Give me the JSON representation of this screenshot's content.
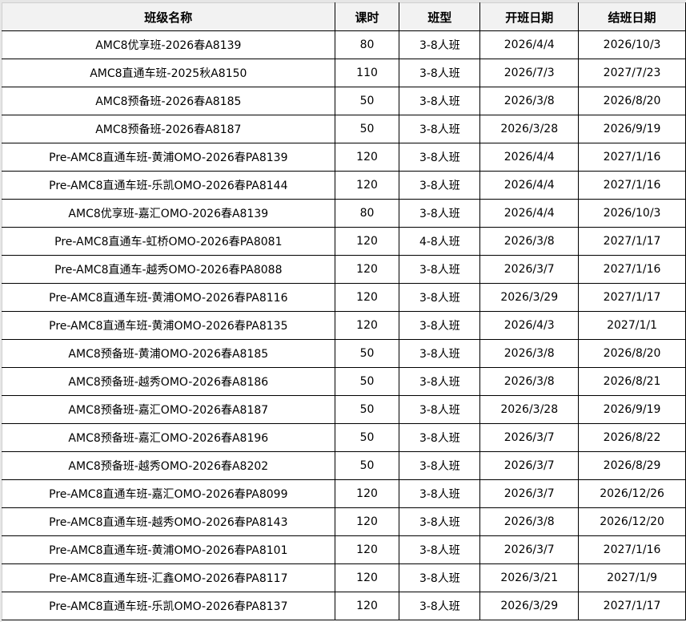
{
  "table": {
    "headers": [
      "班级名称",
      "课时",
      "班型",
      "开班日期",
      "结班日期"
    ],
    "rows": [
      [
        "AMC8优享班-2026春A8139",
        "80",
        "3-8人班",
        "2026/4/4",
        "2026/10/3"
      ],
      [
        "AMC8直通车班-2025秋A8150",
        "110",
        "3-8人班",
        "2026/7/3",
        "2027/7/23"
      ],
      [
        "AMC8预备班-2026春A8185",
        "50",
        "3-8人班",
        "2026/3/8",
        "2026/8/20"
      ],
      [
        "AMC8预备班-2026春A8187",
        "50",
        "3-8人班",
        "2026/3/28",
        "2026/9/19"
      ],
      [
        "Pre-AMC8直通车班-黄浦OMO-2026春PA8139",
        "120",
        "3-8人班",
        "2026/4/4",
        "2027/1/16"
      ],
      [
        "Pre-AMC8直通车班-乐凯OMO-2026春PA8144",
        "120",
        "3-8人班",
        "2026/4/4",
        "2027/1/16"
      ],
      [
        "AMC8优享班-嘉汇OMO-2026春A8139",
        "80",
        "3-8人班",
        "2026/4/4",
        "2026/10/3"
      ],
      [
        "Pre-AMC8直通车-虹桥OMO-2026春PA8081",
        "120",
        "4-8人班",
        "2026/3/8",
        "2027/1/17"
      ],
      [
        "Pre-AMC8直通车-越秀OMO-2026春PA8088",
        "120",
        "3-8人班",
        "2026/3/7",
        "2027/1/16"
      ],
      [
        "Pre-AMC8直通车班-黄浦OMO-2026春PA8116",
        "120",
        "3-8人班",
        "2026/3/29",
        "2027/1/17"
      ],
      [
        "Pre-AMC8直通车班-黄浦OMO-2026春PA8135",
        "120",
        "3-8人班",
        "2026/4/3",
        "2027/1/1"
      ],
      [
        "AMC8预备班-黄浦OMO-2026春A8185",
        "50",
        "3-8人班",
        "2026/3/8",
        "2026/8/20"
      ],
      [
        "AMC8预备班-越秀OMO-2026春A8186",
        "50",
        "3-8人班",
        "2026/3/8",
        "2026/8/21"
      ],
      [
        "AMC8预备班-嘉汇OMO-2026春A8187",
        "50",
        "3-8人班",
        "2026/3/28",
        "2026/9/19"
      ],
      [
        "AMC8预备班-嘉汇OMO-2026春A8196",
        "50",
        "3-8人班",
        "2026/3/7",
        "2026/8/22"
      ],
      [
        "AMC8预备班-越秀OMO-2026春A8202",
        "50",
        "3-8人班",
        "2026/3/7",
        "2026/8/29"
      ],
      [
        "Pre-AMC8直通车班-嘉汇OMO-2026春PA8099",
        "120",
        "3-8人班",
        "2026/3/7",
        "2026/12/26"
      ],
      [
        "Pre-AMC8直通车班-越秀OMO-2026春PA8143",
        "120",
        "3-8人班",
        "2026/3/8",
        "2026/12/20"
      ],
      [
        "Pre-AMC8直通车班-黄浦OMO-2026春PA8101",
        "120",
        "3-8人班",
        "2026/3/7",
        "2027/1/16"
      ],
      [
        "Pre-AMC8直通车班-汇鑫OMO-2026春PA8117",
        "120",
        "3-8人班",
        "2026/3/21",
        "2027/1/9"
      ],
      [
        "Pre-AMC8直通车班-乐凯OMO-2026春PA8137",
        "120",
        "3-8人班",
        "2026/3/29",
        "2027/1/17"
      ]
    ]
  }
}
